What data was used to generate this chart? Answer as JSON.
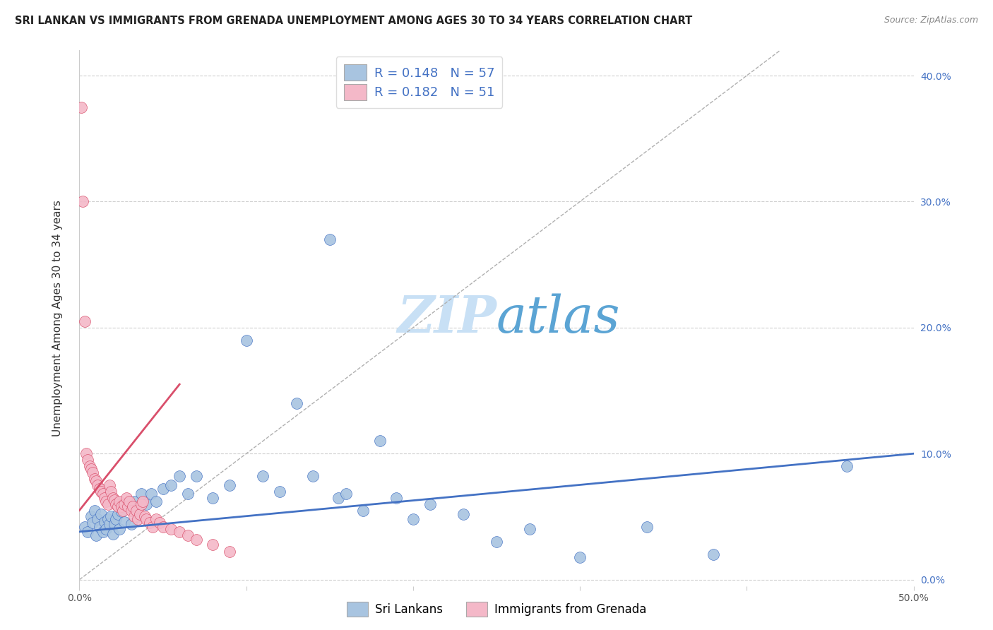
{
  "title": "SRI LANKAN VS IMMIGRANTS FROM GRENADA UNEMPLOYMENT AMONG AGES 30 TO 34 YEARS CORRELATION CHART",
  "source": "Source: ZipAtlas.com",
  "ylabel": "Unemployment Among Ages 30 to 34 years",
  "watermark_zip": "ZIP",
  "watermark_atlas": "atlas",
  "xlim": [
    0.0,
    0.5
  ],
  "ylim": [
    -0.005,
    0.42
  ],
  "xtick_positions": [
    0.0,
    0.1,
    0.2,
    0.3,
    0.4,
    0.5
  ],
  "xtick_labels": [
    "0.0%",
    "",
    "",
    "",
    "",
    "50.0%"
  ],
  "ytick_positions": [
    0.0,
    0.1,
    0.2,
    0.3,
    0.4
  ],
  "ytick_labels_right": [
    "0.0%",
    "10.0%",
    "20.0%",
    "30.0%",
    "40.0%"
  ],
  "legend_labels_bottom": [
    "Sri Lankans",
    "Immigrants from Grenada"
  ],
  "blue_scatter_x": [
    0.003,
    0.005,
    0.007,
    0.008,
    0.009,
    0.01,
    0.011,
    0.012,
    0.013,
    0.014,
    0.015,
    0.016,
    0.017,
    0.018,
    0.019,
    0.02,
    0.021,
    0.022,
    0.023,
    0.024,
    0.025,
    0.027,
    0.029,
    0.031,
    0.033,
    0.035,
    0.037,
    0.04,
    0.043,
    0.046,
    0.05,
    0.055,
    0.06,
    0.065,
    0.07,
    0.08,
    0.09,
    0.1,
    0.11,
    0.12,
    0.13,
    0.14,
    0.15,
    0.155,
    0.16,
    0.17,
    0.18,
    0.19,
    0.2,
    0.21,
    0.23,
    0.25,
    0.27,
    0.3,
    0.34,
    0.38,
    0.46
  ],
  "blue_scatter_y": [
    0.042,
    0.038,
    0.05,
    0.045,
    0.055,
    0.035,
    0.048,
    0.042,
    0.052,
    0.038,
    0.046,
    0.04,
    0.048,
    0.044,
    0.05,
    0.036,
    0.044,
    0.048,
    0.052,
    0.04,
    0.054,
    0.046,
    0.058,
    0.044,
    0.062,
    0.05,
    0.068,
    0.06,
    0.068,
    0.062,
    0.072,
    0.075,
    0.082,
    0.068,
    0.082,
    0.065,
    0.075,
    0.19,
    0.082,
    0.07,
    0.14,
    0.082,
    0.27,
    0.065,
    0.068,
    0.055,
    0.11,
    0.065,
    0.048,
    0.06,
    0.052,
    0.03,
    0.04,
    0.018,
    0.042,
    0.02,
    0.09
  ],
  "pink_scatter_x": [
    0.001,
    0.002,
    0.003,
    0.004,
    0.005,
    0.006,
    0.007,
    0.008,
    0.009,
    0.01,
    0.011,
    0.012,
    0.013,
    0.014,
    0.015,
    0.016,
    0.017,
    0.018,
    0.019,
    0.02,
    0.021,
    0.022,
    0.023,
    0.024,
    0.025,
    0.026,
    0.027,
    0.028,
    0.029,
    0.03,
    0.031,
    0.032,
    0.033,
    0.034,
    0.035,
    0.036,
    0.037,
    0.038,
    0.039,
    0.04,
    0.042,
    0.044,
    0.046,
    0.048,
    0.05,
    0.055,
    0.06,
    0.065,
    0.07,
    0.08,
    0.09
  ],
  "pink_scatter_y": [
    0.375,
    0.3,
    0.205,
    0.1,
    0.095,
    0.09,
    0.088,
    0.085,
    0.08,
    0.078,
    0.075,
    0.072,
    0.07,
    0.068,
    0.065,
    0.062,
    0.06,
    0.075,
    0.07,
    0.065,
    0.063,
    0.06,
    0.058,
    0.062,
    0.058,
    0.055,
    0.06,
    0.065,
    0.058,
    0.062,
    0.055,
    0.058,
    0.05,
    0.055,
    0.048,
    0.052,
    0.06,
    0.062,
    0.05,
    0.048,
    0.045,
    0.042,
    0.048,
    0.045,
    0.042,
    0.04,
    0.038,
    0.035,
    0.032,
    0.028,
    0.022
  ],
  "blue_line_x": [
    0.0,
    0.5
  ],
  "blue_line_y": [
    0.038,
    0.1
  ],
  "pink_line_x": [
    0.0,
    0.06
  ],
  "pink_line_y": [
    0.055,
    0.155
  ],
  "diagonal_line_x": [
    0.0,
    0.42
  ],
  "diagonal_line_y": [
    0.0,
    0.42
  ],
  "blue_color": "#4472c4",
  "blue_scatter_color": "#a8c4e0",
  "pink_color": "#d94f6b",
  "pink_scatter_color": "#f4b8c8",
  "diagonal_color": "#b0b0b0",
  "background_color": "#ffffff",
  "grid_color": "#d0d0d0",
  "title_fontsize": 10.5,
  "axis_label_fontsize": 11,
  "tick_fontsize": 10,
  "watermark_fontsize_zip": 52,
  "watermark_fontsize_atlas": 52,
  "watermark_color_zip": "#c8e0f5",
  "watermark_color_atlas": "#5ba4d4"
}
